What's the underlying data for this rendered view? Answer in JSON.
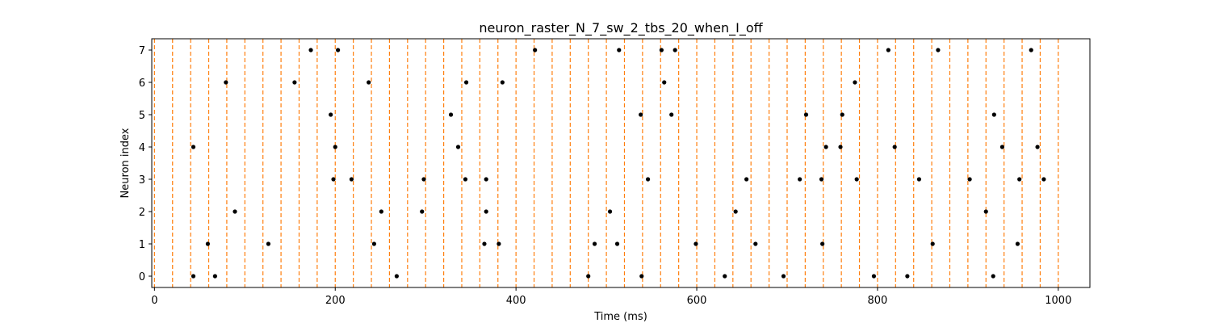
{
  "chart_data": {
    "type": "scatter",
    "title": "neuron_raster_N_7_sw_2_tbs_20_when_I_off",
    "xlabel": "Time (ms)",
    "ylabel": "Neuron index",
    "xlim": [
      -3,
      1035
    ],
    "ylim": [
      -0.35,
      7.35
    ],
    "x_ticks": [
      0,
      200,
      400,
      600,
      800,
      1000
    ],
    "y_ticks": [
      0,
      1,
      2,
      3,
      4,
      5,
      6,
      7
    ],
    "grid": false,
    "legend": "none",
    "marker_color": "#000000",
    "bin_line_color": "#ff7f0e",
    "bin_lines_x": [
      0,
      20,
      40,
      60,
      80,
      100,
      120,
      140,
      160,
      180,
      200,
      220,
      240,
      260,
      280,
      300,
      320,
      340,
      360,
      380,
      400,
      420,
      440,
      460,
      480,
      500,
      520,
      540,
      560,
      580,
      600,
      620,
      640,
      660,
      680,
      700,
      720,
      740,
      760,
      780,
      800,
      820,
      840,
      860,
      880,
      900,
      920,
      940,
      960,
      980,
      1000
    ],
    "series": [
      {
        "neuron": 0,
        "x": [
          43,
          67,
          268,
          480,
          539,
          631,
          696,
          796,
          833,
          928
        ]
      },
      {
        "neuron": 1,
        "x": [
          59,
          126,
          243,
          365,
          381,
          487,
          512,
          599,
          665,
          739,
          861,
          955
        ]
      },
      {
        "neuron": 2,
        "x": [
          89,
          251,
          296,
          367,
          504,
          643,
          920
        ]
      },
      {
        "neuron": 3,
        "x": [
          198,
          218,
          298,
          344,
          367,
          546,
          655,
          714,
          738,
          777,
          846,
          902,
          957,
          984
        ]
      },
      {
        "neuron": 4,
        "x": [
          43,
          200,
          336,
          743,
          759,
          819,
          938,
          977
        ]
      },
      {
        "neuron": 5,
        "x": [
          195,
          328,
          538,
          572,
          721,
          761,
          929
        ]
      },
      {
        "neuron": 6,
        "x": [
          79,
          155,
          237,
          345,
          385,
          564,
          775
        ]
      },
      {
        "neuron": 7,
        "x": [
          173,
          203,
          421,
          514,
          561,
          576,
          812,
          867,
          970
        ]
      }
    ]
  }
}
